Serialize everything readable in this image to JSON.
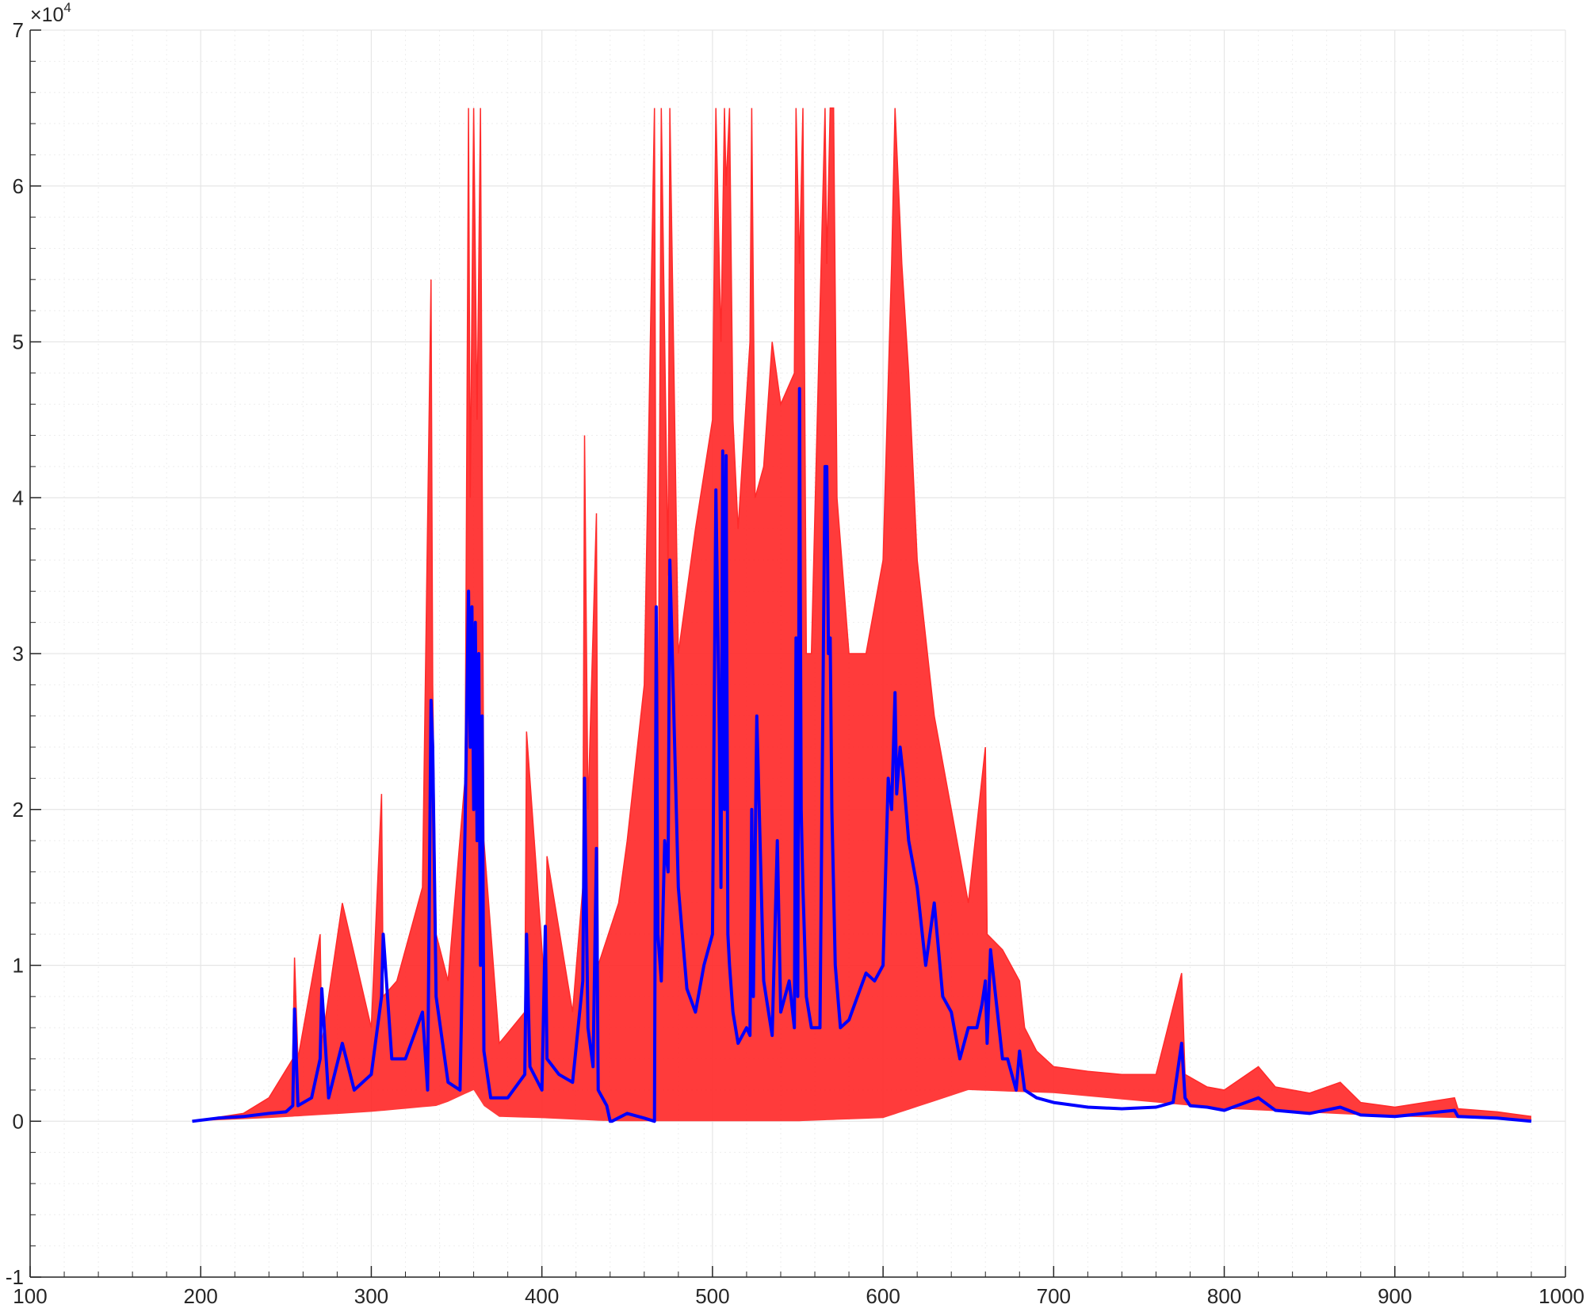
{
  "chart_data": {
    "type": "line",
    "title": "",
    "xlabel": "",
    "ylabel": "",
    "xlim": [
      100,
      1000
    ],
    "ylim": [
      -10000,
      70000
    ],
    "xticks": [
      100,
      200,
      300,
      400,
      500,
      600,
      700,
      800,
      900,
      1000
    ],
    "xtick_labels": [
      "100",
      "200",
      "300",
      "400",
      "500",
      "600",
      "700",
      "800",
      "900",
      "1000"
    ],
    "yticks": [
      -10000,
      0,
      10000,
      20000,
      30000,
      40000,
      50000,
      60000,
      70000
    ],
    "ytick_labels": [
      "-1",
      "0",
      "1",
      "2",
      "3",
      "4",
      "5",
      "6",
      "7"
    ],
    "y_exponent_label": "×10",
    "y_exponent_power": "4",
    "grid": true,
    "minor_grid": true,
    "colors": {
      "envelope": "#ff2a2a",
      "mean": "#0000ff",
      "grid": "#e6e6e6",
      "axis": "#262626"
    },
    "series": [
      {
        "role": "envelope-max",
        "color": "#ff2a2a",
        "x": [
          195,
          225,
          240,
          254,
          255,
          257,
          270,
          271,
          283,
          300,
          306,
          307,
          315,
          330,
          335,
          336,
          338,
          345,
          355,
          357,
          358,
          360,
          362,
          364,
          366,
          375,
          390,
          391,
          402,
          403,
          418,
          424,
          425,
          427,
          432,
          433,
          445,
          450,
          460,
          466,
          467,
          468,
          470,
          474,
          475,
          480,
          490,
          500,
          502,
          505,
          507,
          508,
          510,
          512,
          515,
          522,
          523,
          525,
          530,
          535,
          540,
          548,
          549,
          551,
          553,
          555,
          558,
          566,
          567,
          569,
          571,
          573,
          580,
          590,
          600,
          605,
          607,
          609,
          611,
          615,
          620,
          630,
          640,
          650,
          660,
          661,
          670,
          680,
          683,
          690,
          700,
          720,
          740,
          760,
          775,
          777,
          790,
          800,
          820,
          830,
          850,
          868,
          880,
          900,
          935,
          937,
          960,
          980
        ],
        "y": [
          0,
          500,
          1500,
          4000,
          10500,
          4000,
          12000,
          5000,
          14000,
          6000,
          21000,
          8000,
          9000,
          15000,
          54000,
          28000,
          12000,
          9000,
          22000,
          65000,
          40000,
          65000,
          45000,
          65000,
          18000,
          5000,
          7000,
          25000,
          8000,
          17000,
          7000,
          15000,
          44000,
          20000,
          39000,
          10000,
          14000,
          18000,
          28000,
          65000,
          30000,
          20000,
          65000,
          35000,
          65000,
          30000,
          38000,
          45000,
          65000,
          50000,
          65000,
          60000,
          65000,
          45000,
          38000,
          50000,
          65000,
          40000,
          42000,
          50000,
          46000,
          48000,
          65000,
          55000,
          65000,
          30000,
          30000,
          65000,
          55000,
          65000,
          65000,
          40000,
          30000,
          30000,
          36000,
          55000,
          65000,
          60000,
          55000,
          48000,
          36000,
          26000,
          20000,
          14000,
          24000,
          12000,
          11000,
          9000,
          6000,
          4500,
          3500,
          3200,
          3000,
          3000,
          9500,
          3000,
          2200,
          2000,
          3500,
          2200,
          1800,
          2500,
          1200,
          900,
          1500,
          800,
          600,
          300
        ]
      },
      {
        "role": "envelope-min",
        "color": "#ff2a2a",
        "x": [
          195,
          240,
          300,
          340,
          360,
          370,
          400,
          440,
          450,
          470,
          500,
          550,
          600,
          650,
          700,
          800,
          900,
          980
        ],
        "y": [
          0,
          200,
          600,
          1000,
          2000,
          300,
          200,
          0,
          0,
          0,
          0,
          0,
          200,
          2000,
          1800,
          800,
          300,
          100
        ]
      },
      {
        "role": "mean",
        "color": "#0000ff",
        "x": [
          195,
          210,
          225,
          240,
          250,
          254,
          255,
          257,
          265,
          270,
          271,
          275,
          283,
          290,
          300,
          306,
          307,
          312,
          320,
          330,
          333,
          335,
          336,
          338,
          345,
          352,
          355,
          357,
          358,
          359,
          360,
          361,
          362,
          363,
          364,
          365,
          366,
          370,
          380,
          390,
          391,
          393,
          400,
          402,
          403,
          410,
          418,
          424,
          425,
          427,
          430,
          432,
          433,
          438,
          440,
          441,
          450,
          460,
          466,
          467,
          468,
          470,
          472,
          474,
          475,
          480,
          485,
          490,
          495,
          500,
          502,
          504,
          505,
          506,
          507,
          508,
          509,
          510,
          512,
          515,
          520,
          522,
          523,
          524,
          526,
          530,
          535,
          538,
          540,
          545,
          548,
          549,
          550,
          551,
          552,
          553,
          555,
          558,
          563,
          566,
          567,
          568,
          569,
          570,
          572,
          575,
          580,
          585,
          590,
          595,
          600,
          603,
          605,
          607,
          608,
          610,
          612,
          615,
          620,
          625,
          630,
          635,
          640,
          645,
          650,
          655,
          658,
          660,
          661,
          663,
          670,
          673,
          678,
          680,
          683,
          690,
          700,
          720,
          740,
          760,
          770,
          775,
          777,
          780,
          790,
          800,
          820,
          830,
          850,
          868,
          880,
          900,
          935,
          937,
          960,
          980
        ],
        "y": [
          0,
          200,
          300,
          500,
          600,
          1000,
          7200,
          1000,
          1500,
          4000,
          8500,
          1500,
          5000,
          2000,
          3000,
          8000,
          12000,
          4000,
          4000,
          7000,
          2000,
          27000,
          24000,
          8000,
          2500,
          2000,
          19000,
          34000,
          24000,
          33000,
          20000,
          32000,
          18000,
          30000,
          10000,
          26000,
          4500,
          1500,
          1500,
          3000,
          12000,
          3500,
          2000,
          12500,
          4000,
          3000,
          2500,
          9000,
          22000,
          6000,
          3500,
          17500,
          2000,
          1000,
          0,
          0,
          500,
          200,
          0,
          33000,
          12000,
          9000,
          18000,
          16000,
          36000,
          15000,
          8500,
          7000,
          10000,
          12000,
          40500,
          25000,
          15000,
          43000,
          20000,
          42700,
          12000,
          10000,
          7000,
          5000,
          6000,
          5500,
          20000,
          8000,
          26000,
          9000,
          5500,
          18000,
          7000,
          9000,
          6000,
          31000,
          8000,
          47000,
          20000,
          15000,
          8000,
          6000,
          6000,
          42000,
          42000,
          30000,
          31000,
          20000,
          10000,
          6000,
          6500,
          8000,
          9500,
          9000,
          10000,
          22000,
          20000,
          27500,
          21000,
          24000,
          22000,
          18000,
          15000,
          10000,
          14000,
          8000,
          7000,
          4000,
          6000,
          6000,
          7500,
          9000,
          5000,
          11000,
          4000,
          4000,
          2000,
          4500,
          2000,
          1500,
          1200,
          900,
          800,
          900,
          1200,
          5000,
          1500,
          1000,
          900,
          700,
          1500,
          700,
          500,
          900,
          400,
          300,
          700,
          300,
          200,
          0
        ]
      }
    ]
  }
}
